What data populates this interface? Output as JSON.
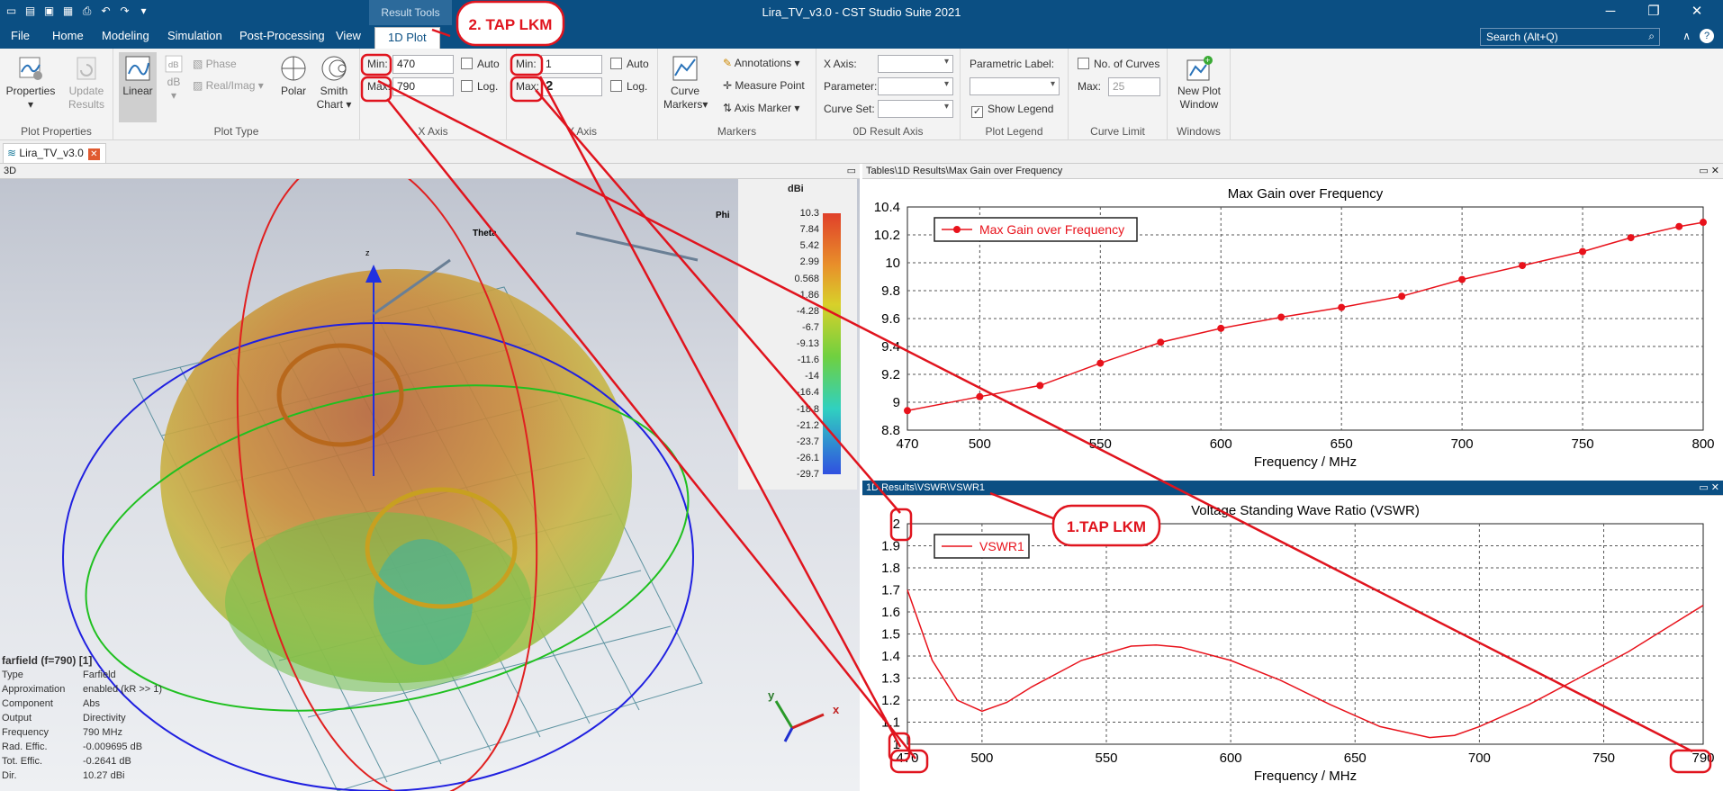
{
  "app": {
    "title": "Lira_TV_v3.0 - CST Studio Suite 2021",
    "context_group": "Result Tools",
    "search_placeholder": "Search (Alt+Q)"
  },
  "menu_tabs": [
    "File",
    "Home",
    "Modeling",
    "Simulation",
    "Post-Processing",
    "View",
    "1D Plot"
  ],
  "ribbon": {
    "plot_properties": {
      "properties": "Properties",
      "update": "Update",
      "update2": "Results",
      "group": "Plot Properties"
    },
    "plot_type": {
      "linear": "Linear",
      "db": "dB",
      "phase": "Phase",
      "realimag": "Real/Imag",
      "polar": "Polar",
      "smith": "Smith",
      "smith2": "Chart",
      "group": "Plot Type"
    },
    "x_axis": {
      "min_label": "Min:",
      "min_value": "470",
      "max_label": "Max:",
      "max_value": "790",
      "auto": "Auto",
      "log": "Log.",
      "group": "X Axis"
    },
    "y_axis": {
      "min_label": "Min:",
      "min_value": "1",
      "max_label": "Max:",
      "max_value": "2",
      "auto": "Auto",
      "log": "Log.",
      "group": "Y Axis"
    },
    "markers": {
      "curve": "Curve",
      "curve2": "Markers",
      "annotations": "Annotations",
      "measure": "Measure Point",
      "axis_marker": "Axis Marker",
      "group": "Markers"
    },
    "result_axis": {
      "xaxis": "X Axis:",
      "parameter": "Parameter:",
      "curveset": "Curve Set:",
      "group": "0D Result Axis"
    },
    "legend": {
      "param_label": "Parametric Label:",
      "show_legend": "Show Legend",
      "group": "Plot Legend"
    },
    "curve_limit": {
      "no_curves": "No. of Curves",
      "max_label": "Max:",
      "max_value": "25",
      "group": "Curve Limit"
    },
    "windows": {
      "new_plot": "New Plot",
      "new_plot2": "Window",
      "group": "Windows"
    }
  },
  "document_tab": "Lira_TV_v3.0",
  "view3d": {
    "header": "3D",
    "theta": "Theta",
    "phi": "Phi",
    "z": "z",
    "unit": "dBi",
    "colorbar_ticks": [
      "10.3",
      "7.84",
      "5.42",
      "2.99",
      "0.568",
      "-1.86",
      "-4.28",
      "-6.7",
      "-9.13",
      "-11.6",
      "-14",
      "-16.4",
      "-18.8",
      "-21.2",
      "-23.7",
      "-26.1",
      "-29.7"
    ],
    "info_title": "farfield (f=790) [1]",
    "info": [
      [
        "Type",
        "Farfield"
      ],
      [
        "Approximation",
        "enabled (kR >> 1)"
      ],
      [
        "Component",
        "Abs"
      ],
      [
        "Output",
        "Directivity"
      ],
      [
        "Frequency",
        "790 MHz"
      ],
      [
        "Rad. Effic.",
        "-0.009695 dB"
      ],
      [
        "Tot. Effic.",
        "-0.2641 dB"
      ],
      [
        "Dir.",
        "10.27 dBi"
      ]
    ]
  },
  "gain_panel": {
    "header": "Tables\\1D Results\\Max Gain over Frequency"
  },
  "vswr_panel": {
    "header": "1D Results\\VSWR\\VSWR1"
  },
  "annotations": {
    "tap1": "1.TAP LKM",
    "tap2": "2. TAP LKM"
  },
  "colors": {
    "titlebar": "#0b4f83",
    "annotation_red": "#e0141e",
    "curve_red": "#e8121b"
  },
  "chart_data": [
    {
      "type": "line",
      "title": "Max Gain over Frequency",
      "xlabel": "Frequency / MHz",
      "ylabel": "",
      "xlim": [
        470,
        800
      ],
      "ylim": [
        8.8,
        10.4
      ],
      "xticks": [
        470,
        500,
        550,
        600,
        650,
        700,
        750,
        800
      ],
      "yticks": [
        8.8,
        9,
        9.2,
        9.4,
        9.6,
        9.8,
        10,
        10.2,
        10.4
      ],
      "ytick_labels": [
        "8.8",
        "9",
        "9.2",
        "9.4",
        "9.6",
        "9.8",
        "10",
        "10.2",
        "10.4"
      ],
      "grid": true,
      "legend": "top-left",
      "series": [
        {
          "name": "Max Gain over Frequency",
          "x": [
            470,
            500,
            525,
            550,
            575,
            600,
            625,
            650,
            675,
            700,
            725,
            750,
            770,
            790,
            800
          ],
          "y": [
            8.94,
            9.04,
            9.12,
            9.28,
            9.43,
            9.53,
            9.61,
            9.68,
            9.76,
            9.88,
            9.98,
            10.08,
            10.18,
            10.26,
            10.29
          ]
        }
      ]
    },
    {
      "type": "line",
      "title": "Voltage Standing Wave Ratio (VSWR)",
      "xlabel": "Frequency / MHz",
      "ylabel": "",
      "xlim": [
        470,
        790
      ],
      "ylim": [
        1,
        2
      ],
      "xticks": [
        470,
        500,
        550,
        600,
        650,
        700,
        750,
        790
      ],
      "yticks": [
        1,
        1.1,
        1.2,
        1.3,
        1.4,
        1.5,
        1.6,
        1.7,
        1.8,
        1.9,
        2
      ],
      "ytick_labels": [
        "1",
        "1.1",
        "1.2",
        "1.3",
        "1.4",
        "1.5",
        "1.6",
        "1.7",
        "1.8",
        "1.9",
        "2"
      ],
      "grid": true,
      "legend": "top-left",
      "series": [
        {
          "name": "VSWR1",
          "x": [
            470,
            480,
            490,
            500,
            510,
            520,
            540,
            560,
            570,
            580,
            600,
            620,
            640,
            660,
            680,
            690,
            700,
            720,
            740,
            760,
            780,
            790
          ],
          "y": [
            1.7,
            1.38,
            1.2,
            1.15,
            1.19,
            1.26,
            1.38,
            1.445,
            1.45,
            1.44,
            1.38,
            1.29,
            1.18,
            1.08,
            1.03,
            1.04,
            1.08,
            1.18,
            1.3,
            1.42,
            1.56,
            1.63
          ]
        }
      ]
    }
  ]
}
